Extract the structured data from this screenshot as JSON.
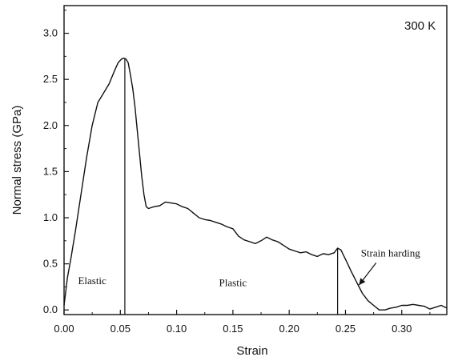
{
  "chart_data": {
    "type": "line",
    "xlabel": "Strain",
    "ylabel": "Normal stress (GPa)",
    "xlim": [
      0.0,
      0.34
    ],
    "ylim": [
      -0.05,
      3.3
    ],
    "x_ticks": [
      0.0,
      0.05,
      0.1,
      0.15,
      0.2,
      0.25,
      0.3
    ],
    "x_tick_labels": [
      "0.00",
      "0.05",
      "0.10",
      "0.15",
      "0.20",
      "0.25",
      "0.30"
    ],
    "y_ticks": [
      0.0,
      0.5,
      1.0,
      1.5,
      2.0,
      2.5,
      3.0
    ],
    "y_tick_labels": [
      "0.0",
      "0.5",
      "1.0",
      "1.5",
      "2.0",
      "2.5",
      "3.0"
    ],
    "grid": false,
    "legend": "none",
    "series": [
      {
        "x": [
          0.0,
          0.003,
          0.006,
          0.01,
          0.015,
          0.02,
          0.025,
          0.03,
          0.035,
          0.04,
          0.045,
          0.048,
          0.051,
          0.053,
          0.055,
          0.057,
          0.059,
          0.061,
          0.063,
          0.065,
          0.067,
          0.069,
          0.071,
          0.073,
          0.075,
          0.08,
          0.085,
          0.09,
          0.095,
          0.1,
          0.105,
          0.11,
          0.115,
          0.12,
          0.125,
          0.13,
          0.135,
          0.14,
          0.145,
          0.15,
          0.155,
          0.16,
          0.165,
          0.17,
          0.175,
          0.18,
          0.185,
          0.19,
          0.195,
          0.2,
          0.205,
          0.21,
          0.215,
          0.22,
          0.225,
          0.23,
          0.235,
          0.24,
          0.243,
          0.246,
          0.25,
          0.255,
          0.26,
          0.265,
          0.27,
          0.275,
          0.28,
          0.285,
          0.29,
          0.295,
          0.3,
          0.305,
          0.31,
          0.315,
          0.32,
          0.325,
          0.33,
          0.335,
          0.34
        ],
        "y": [
          0.05,
          0.35,
          0.55,
          0.85,
          1.25,
          1.65,
          2.0,
          2.25,
          2.35,
          2.45,
          2.6,
          2.68,
          2.72,
          2.73,
          2.72,
          2.68,
          2.55,
          2.4,
          2.2,
          1.95,
          1.7,
          1.45,
          1.25,
          1.12,
          1.1,
          1.12,
          1.13,
          1.17,
          1.16,
          1.15,
          1.12,
          1.1,
          1.05,
          1.0,
          0.98,
          0.97,
          0.95,
          0.93,
          0.9,
          0.88,
          0.8,
          0.76,
          0.74,
          0.72,
          0.75,
          0.79,
          0.76,
          0.74,
          0.7,
          0.66,
          0.64,
          0.62,
          0.63,
          0.6,
          0.58,
          0.61,
          0.6,
          0.62,
          0.67,
          0.65,
          0.55,
          0.42,
          0.3,
          0.18,
          0.1,
          0.05,
          0.0,
          0.0,
          0.02,
          0.03,
          0.05,
          0.05,
          0.06,
          0.05,
          0.04,
          0.01,
          0.03,
          0.05,
          0.02
        ]
      }
    ],
    "vertical_lines": [
      0.054,
      0.243
    ],
    "annotations": [
      {
        "text": "Elastic",
        "x": 0.025,
        "y": 0.28
      },
      {
        "text": "Plastic",
        "x": 0.15,
        "y": 0.26
      },
      {
        "text": "Strain harding",
        "x": 0.29,
        "y": 0.58,
        "arrow_to": [
          0.262,
          0.27
        ]
      }
    ],
    "corner_label": "300 K"
  }
}
